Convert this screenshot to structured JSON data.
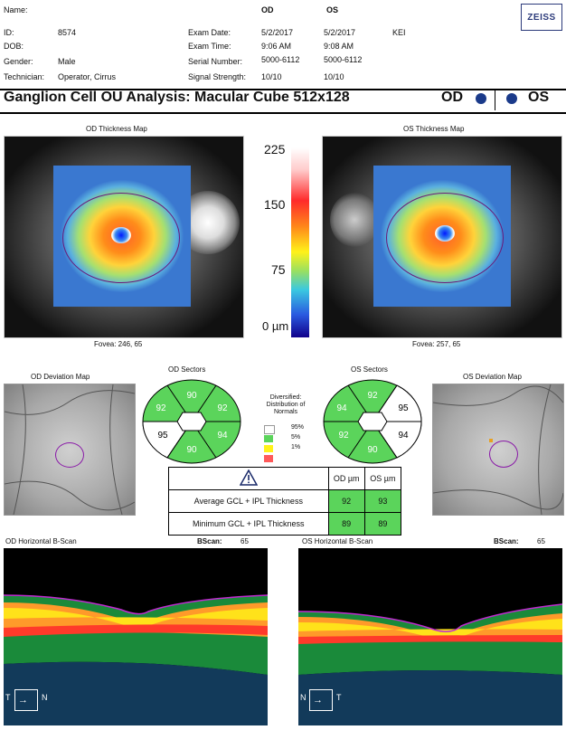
{
  "header": {
    "name_label": "Name:",
    "id_label": "ID:",
    "id_value": "8574",
    "dob_label": "DOB:",
    "gender_label": "Gender:",
    "gender_value": "Male",
    "technician_label": "Technician:",
    "technician_value": "Operator, Cirrus",
    "col_od": "OD",
    "col_os": "OS",
    "exam_date_label": "Exam Date:",
    "exam_date_od": "5/2/2017",
    "exam_date_os": "5/2/2017",
    "exam_extra": "KEI",
    "exam_time_label": "Exam Time:",
    "exam_time_od": "9:06 AM",
    "exam_time_os": "9:08 AM",
    "serial_label": "Serial Number:",
    "serial_od": "5000-6112",
    "serial_os": "5000-6112",
    "signal_label": "Signal Strength:",
    "signal_od": "10/10",
    "signal_os": "10/10",
    "logo": "ZEISS"
  },
  "title": {
    "text": "Ganglion Cell OU Analysis: Macular Cube 512x128",
    "od": "OD",
    "os": "OS",
    "dot_color": "#1a3a8a"
  },
  "maps": {
    "od_title": "OD Thickness Map",
    "os_title": "OS Thickness Map",
    "od_fovea": "Fovea: 246, 65",
    "os_fovea": "Fovea: 257, 65",
    "scale_ticks": [
      "225",
      "150",
      "75",
      "0 µm"
    ]
  },
  "deviation": {
    "od_title": "OD Deviation Map",
    "os_title": "OS Deviation Map"
  },
  "sectors": {
    "od_title": "OD Sectors",
    "os_title": "OS Sectors",
    "od_values": {
      "superior": "90",
      "superonasal_left": "92",
      "superotemporal_right": "92",
      "inferior": "90",
      "left_mid": "95",
      "right_mid": "94"
    },
    "os_values": {
      "superior": "92",
      "upper_left": "94",
      "upper_right": "95",
      "inferior": "90",
      "lower_left": "92",
      "lower_right": "94"
    }
  },
  "legend": {
    "title": "Diversified: Distribution of Normals",
    "items": [
      {
        "label": "95%",
        "color": "#ffffff"
      },
      {
        "label": "5%",
        "color": "#5bd45b"
      },
      {
        "label": "1%",
        "color": "#fff21a"
      },
      {
        "label": "",
        "color": "#ff5a5a"
      }
    ]
  },
  "gcl_table": {
    "warning_icon": "warning-icon",
    "col_od": "OD µm",
    "col_os": "OS µm",
    "rows": [
      {
        "label": "Average GCL + IPL Thickness",
        "od": "92",
        "os": "93"
      },
      {
        "label": "Minimum GCL + IPL Thickness",
        "od": "89",
        "os": "89"
      }
    ]
  },
  "bscan": {
    "od_title": "OD Horizontal B-Scan",
    "os_title": "OS Horizontal B-Scan",
    "bscan_label": "BScan:",
    "od_value": "65",
    "os_value": "65",
    "od_left": "T",
    "od_right": "N",
    "os_left": "N",
    "os_right": "T"
  }
}
